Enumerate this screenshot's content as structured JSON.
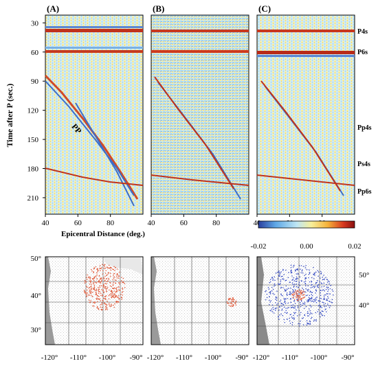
{
  "panels": [
    {
      "id": "A",
      "label": "(A)"
    },
    {
      "id": "B",
      "label": "(B)"
    },
    {
      "id": "C",
      "label": "(C)"
    }
  ],
  "y_axis_label": "Time after P (sec.)",
  "x_axis_label": "Epicentral Distance (deg.)",
  "y_ticks": [
    "30",
    "60",
    "90",
    "120",
    "150",
    "180",
    "210"
  ],
  "x_ticks": [
    "40",
    "60",
    "80"
  ],
  "phase_labels": [
    "P4s",
    "P6s",
    "Pp4s",
    "Ps4s",
    "Pp6s"
  ],
  "pp_label": "PP",
  "colorbar": {
    "ticks": [
      "-0.02",
      "0.00",
      "0.02"
    ],
    "colors": [
      "#2a3f9e",
      "#5fa8e6",
      "#bfe6f4",
      "#f7ef9a",
      "#f5b23a",
      "#d83a20",
      "#8a1010"
    ]
  },
  "map_lat_ticks_left": [
    "50°",
    "40°",
    "30°"
  ],
  "map_lat_ticks_right": [
    "50°",
    "40°"
  ],
  "map_lon_ticks": [
    "-120°",
    "-110°",
    "-100°",
    "-90°",
    "-120°",
    "-110°",
    "-100°",
    "-90°",
    "-120°",
    "-110°",
    "-100°",
    "-90°"
  ],
  "colors": {
    "receiver_red": "#e05a3a",
    "event_blue": "#3a4fc4"
  }
}
